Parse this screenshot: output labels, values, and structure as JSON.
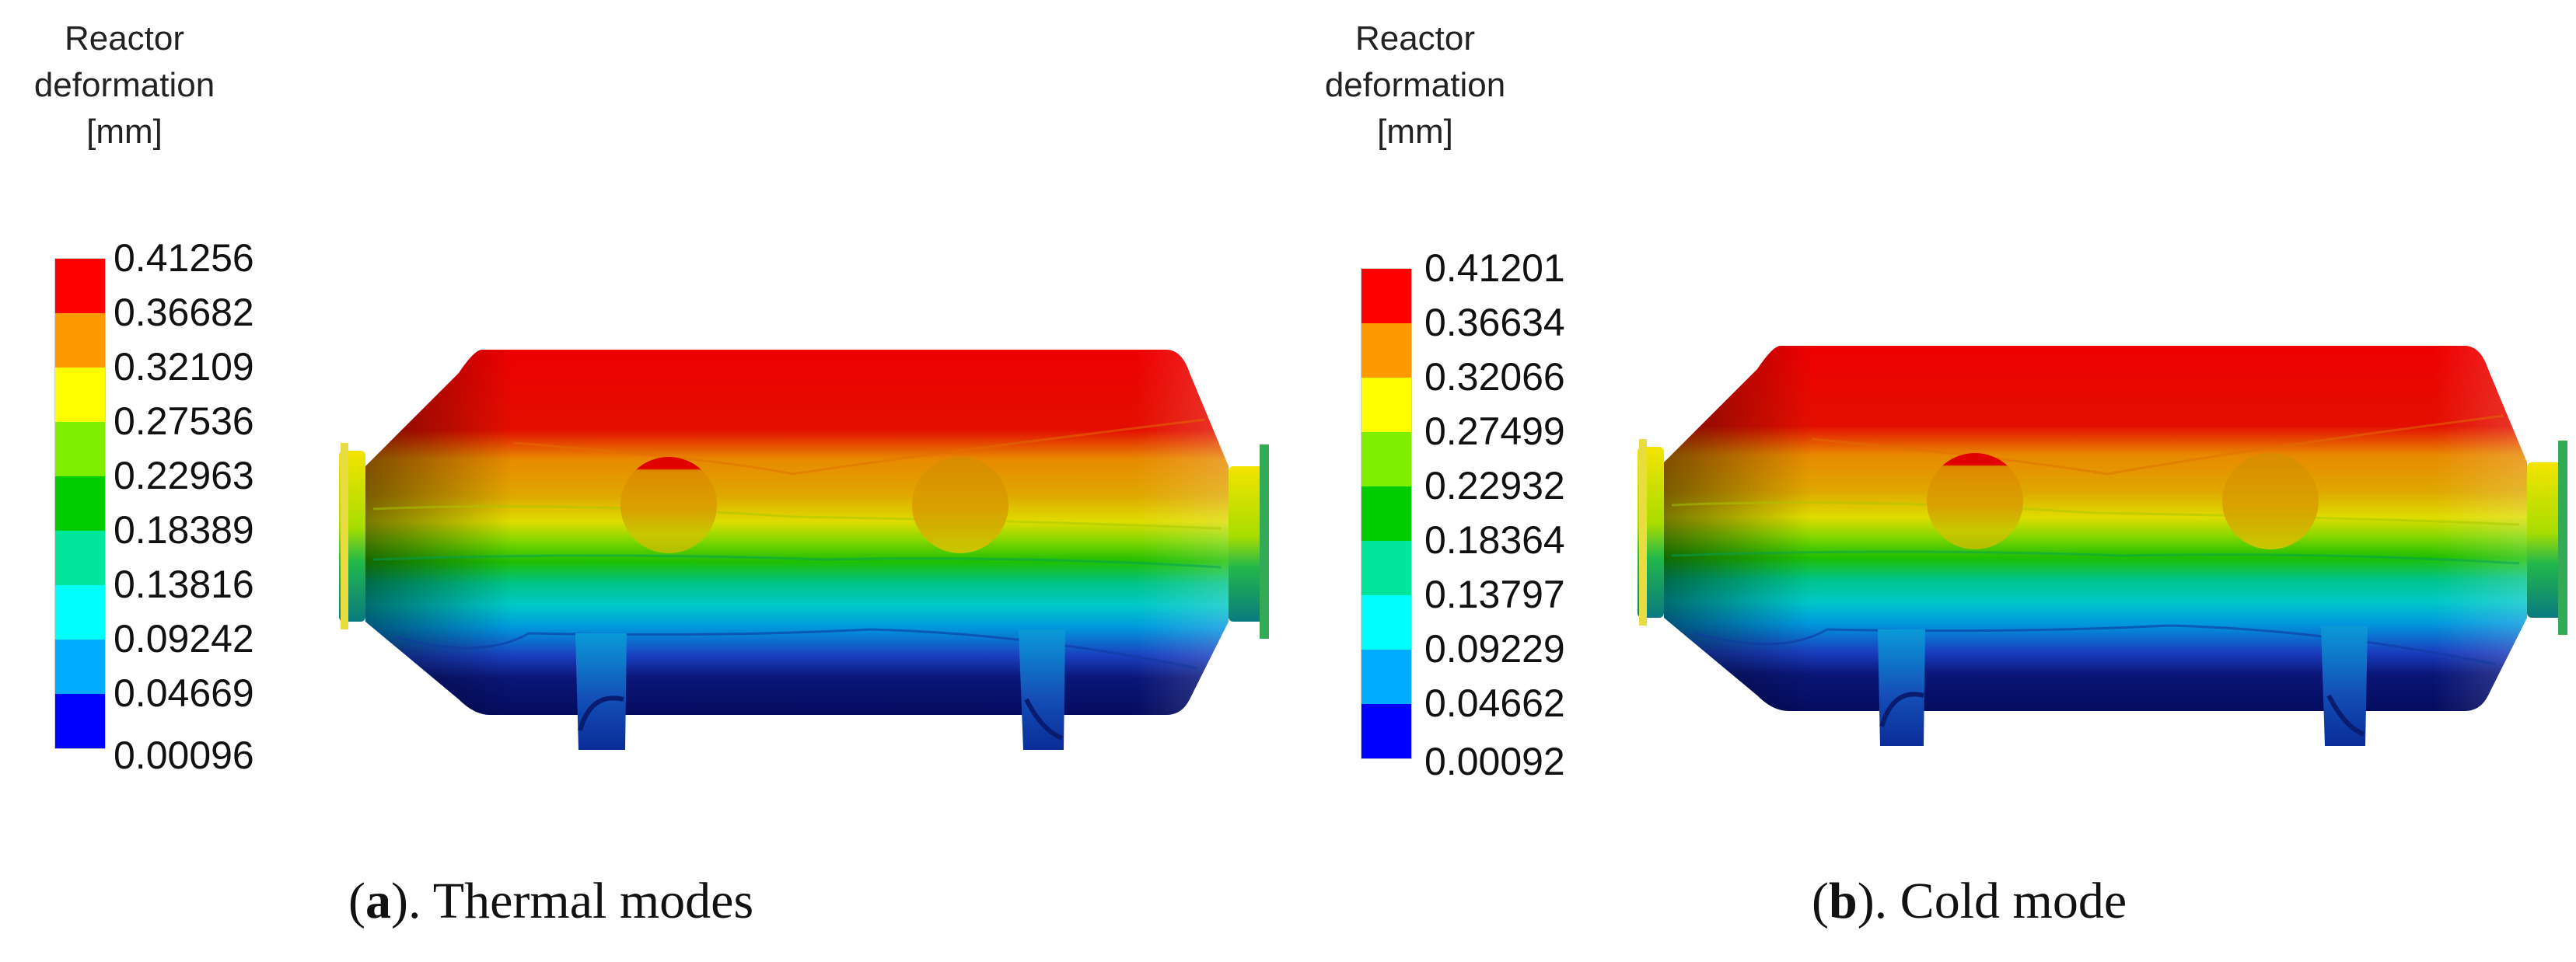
{
  "colormap": [
    "#ff0000",
    "#ff9900",
    "#ffff00",
    "#80ee00",
    "#00cc00",
    "#00e69a",
    "#00ffff",
    "#00aaff",
    "#0000ff"
  ],
  "panels": [
    {
      "legend": {
        "title_lines": [
          "Reactor",
          "deformation",
          "[mm]"
        ],
        "ticks": [
          "0.41256",
          "0.36682",
          "0.32109",
          "0.27536",
          "0.22963",
          "0.18389",
          "0.13816",
          "0.09242",
          "0.04669",
          "0.00096"
        ]
      },
      "caption": {
        "letter": "a",
        "text": "). Thermal modes"
      }
    },
    {
      "legend": {
        "title_lines": [
          "Reactor",
          "deformation",
          "[mm]"
        ],
        "ticks": [
          "0.41201",
          "0.36634",
          "0.32066",
          "0.27499",
          "0.22932",
          "0.18364",
          "0.13797",
          "0.09229",
          "0.04662",
          "0.00092"
        ]
      },
      "caption": {
        "letter": "b",
        "text": "). Cold mode"
      }
    }
  ]
}
